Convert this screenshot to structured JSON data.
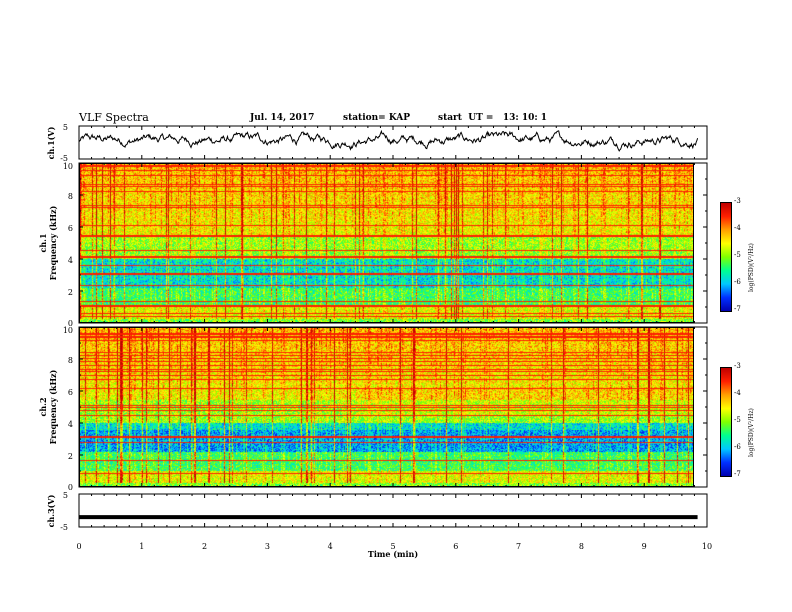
{
  "header": {
    "title": "VLF Spectra",
    "date": "Jul. 14, 2017",
    "station": "station= KAP",
    "start": "start  UT =   13: 10: 1"
  },
  "colors": {
    "waveform": "#000000",
    "frame": "#000000",
    "colormap": [
      "#0000b0",
      "#0030ff",
      "#00c8ff",
      "#00ff90",
      "#80ff00",
      "#ffff00",
      "#ffa000",
      "#ff2000",
      "#c00000"
    ]
  },
  "chart_data": [
    {
      "type": "line",
      "name": "ch.1 waveform",
      "ylabel": "ch.1(V)",
      "ylim": [
        -5,
        5
      ],
      "yticks": [
        "5",
        "-5"
      ],
      "xlim": [
        0,
        10
      ],
      "note_values": "noisy waveform oscillating roughly between -2 and +3 V around +0.5 V"
    },
    {
      "type": "heatmap",
      "name": "ch.1 spectrogram",
      "ylabel": "ch.1\nFrequency (kHz)",
      "ylim": [
        0,
        10
      ],
      "yticks": [
        "0",
        "2",
        "4",
        "6",
        "8",
        "10"
      ],
      "xlim": [
        0,
        9.85
      ],
      "colorbar": {
        "label": "log(PSD)(V²/Hz)",
        "range": [
          -7,
          -3
        ],
        "ticks": [
          "-3",
          "-4",
          "-5",
          "-6",
          "-7"
        ]
      }
    },
    {
      "type": "heatmap",
      "name": "ch.2 spectrogram",
      "ylabel": "ch.2\nFrequency (kHz)",
      "ylim": [
        0,
        10
      ],
      "yticks": [
        "0",
        "2",
        "4",
        "6",
        "8",
        "10"
      ],
      "xlim": [
        0,
        9.85
      ],
      "colorbar": {
        "label": "log(PSD)(V²/Hz)",
        "range": [
          -7,
          -3
        ],
        "ticks": [
          "-3",
          "-4",
          "-5",
          "-6",
          "-7"
        ]
      }
    },
    {
      "type": "line",
      "name": "ch.3 waveform",
      "ylabel": "ch.3(V)",
      "ylim": [
        -5,
        5
      ],
      "yticks": [
        "5",
        "-5"
      ],
      "xlim": [
        0,
        10
      ],
      "x": [
        0,
        9.85
      ],
      "y": [
        -2,
        -2
      ]
    }
  ],
  "xaxis": {
    "label": "Time (min)",
    "ticks": [
      "0",
      "1",
      "2",
      "3",
      "4",
      "5",
      "6",
      "7",
      "8",
      "9",
      "10"
    ]
  }
}
